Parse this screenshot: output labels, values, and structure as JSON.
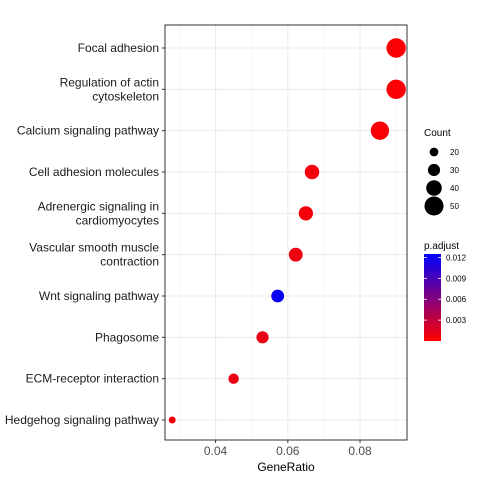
{
  "chart_data": {
    "type": "scatter",
    "xlabel": "GeneRatio",
    "xlim": [
      0.026,
      0.093
    ],
    "x_ticks": [
      0.04,
      0.06,
      0.08
    ],
    "x_tick_labels": [
      "0.04",
      "0.06",
      "0.08"
    ],
    "grid": true,
    "categories": [
      "Focal adhesion",
      "Regulation of actin\ncytoskeleton",
      "Calcium signaling pathway",
      "Cell adhesion molecules",
      "Adrenergic signaling in\ncardiomyocytes",
      "Vascular smooth muscle\ncontraction",
      "Wnt signaling pathway",
      "Phagosome",
      "ECM-receptor interaction",
      "Hedgehog signaling pathway"
    ],
    "points": [
      {
        "x": 0.09,
        "count": 51,
        "p_adjust": 0.0002
      },
      {
        "x": 0.09,
        "count": 51,
        "p_adjust": 0.0002
      },
      {
        "x": 0.0855,
        "count": 48,
        "p_adjust": 0.0003
      },
      {
        "x": 0.0667,
        "count": 37,
        "p_adjust": 0.0005
      },
      {
        "x": 0.065,
        "count": 36,
        "p_adjust": 0.0005
      },
      {
        "x": 0.0622,
        "count": 35,
        "p_adjust": 0.0008
      },
      {
        "x": 0.0572,
        "count": 32,
        "p_adjust": 0.012
      },
      {
        "x": 0.053,
        "count": 30,
        "p_adjust": 0.001
      },
      {
        "x": 0.045,
        "count": 25,
        "p_adjust": 0.0008
      },
      {
        "x": 0.028,
        "count": 15,
        "p_adjust": 0.0006
      }
    ],
    "size_legend": {
      "title": "Count",
      "values": [
        20,
        30,
        40,
        50
      ],
      "labels": [
        "20",
        "30",
        "40",
        "50"
      ]
    },
    "color_legend": {
      "title": "p.adjust",
      "min": 0.0,
      "max": 0.0125,
      "ticks": [
        0.012,
        0.009,
        0.006,
        0.003
      ],
      "tick_labels": [
        "0.012",
        "0.009",
        "0.006",
        "0.003"
      ],
      "low_color": "#ff0000",
      "high_color": "#0000ff"
    },
    "legend_position": "right"
  }
}
